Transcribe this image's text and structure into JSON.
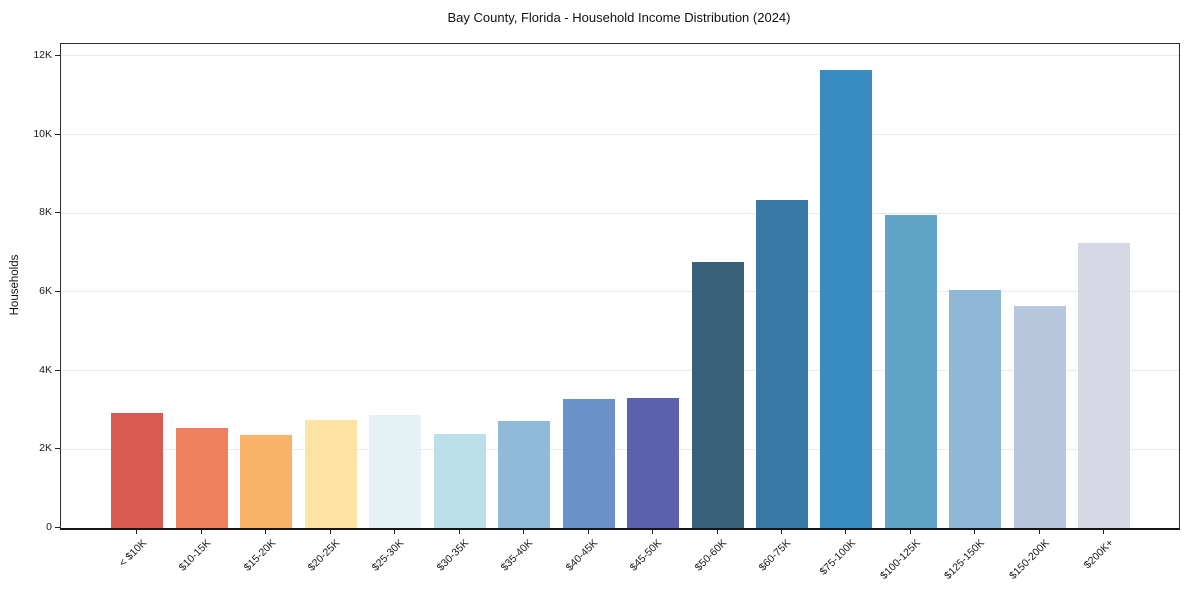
{
  "chart_data": {
    "type": "bar",
    "title": "Bay County, Florida - Household Income Distribution (2024)",
    "xlabel": "",
    "ylabel": "Households",
    "categories": [
      "< $10K",
      "$10-15K",
      "$15-20K",
      "$20-25K",
      "$25-30K",
      "$30-35K",
      "$35-40K",
      "$40-45K",
      "$45-50K",
      "$50-60K",
      "$60-75K",
      "$75-100K",
      "$100-125K",
      "$125-150K",
      "$150-200K",
      "$200K+"
    ],
    "values": [
      2930,
      2540,
      2370,
      2750,
      2880,
      2400,
      2730,
      3280,
      3310,
      6760,
      8330,
      11650,
      7950,
      6050,
      5650,
      7250
    ],
    "bar_colors": [
      "#d85c51",
      "#ef7f5e",
      "#f9b269",
      "#fce3a4",
      "#e4f2f5",
      "#bbdfe9",
      "#8fbad8",
      "#6b92c8",
      "#5c61ad",
      "#38617a",
      "#3879a5",
      "#398cc1",
      "#60a5c8",
      "#8eb8d6",
      "#b6c7de",
      "#d6d8e6"
    ],
    "yticks": {
      "values": [
        0,
        2000,
        4000,
        6000,
        8000,
        10000,
        12000
      ],
      "labels": [
        "0",
        "2K",
        "4K",
        "6K",
        "8K",
        "10K",
        "12K"
      ]
    },
    "ylim": [
      0,
      12300
    ],
    "grid": "horizontal",
    "legend": "none",
    "x_tick_rotation": 45,
    "background_color": "#ffffff"
  }
}
